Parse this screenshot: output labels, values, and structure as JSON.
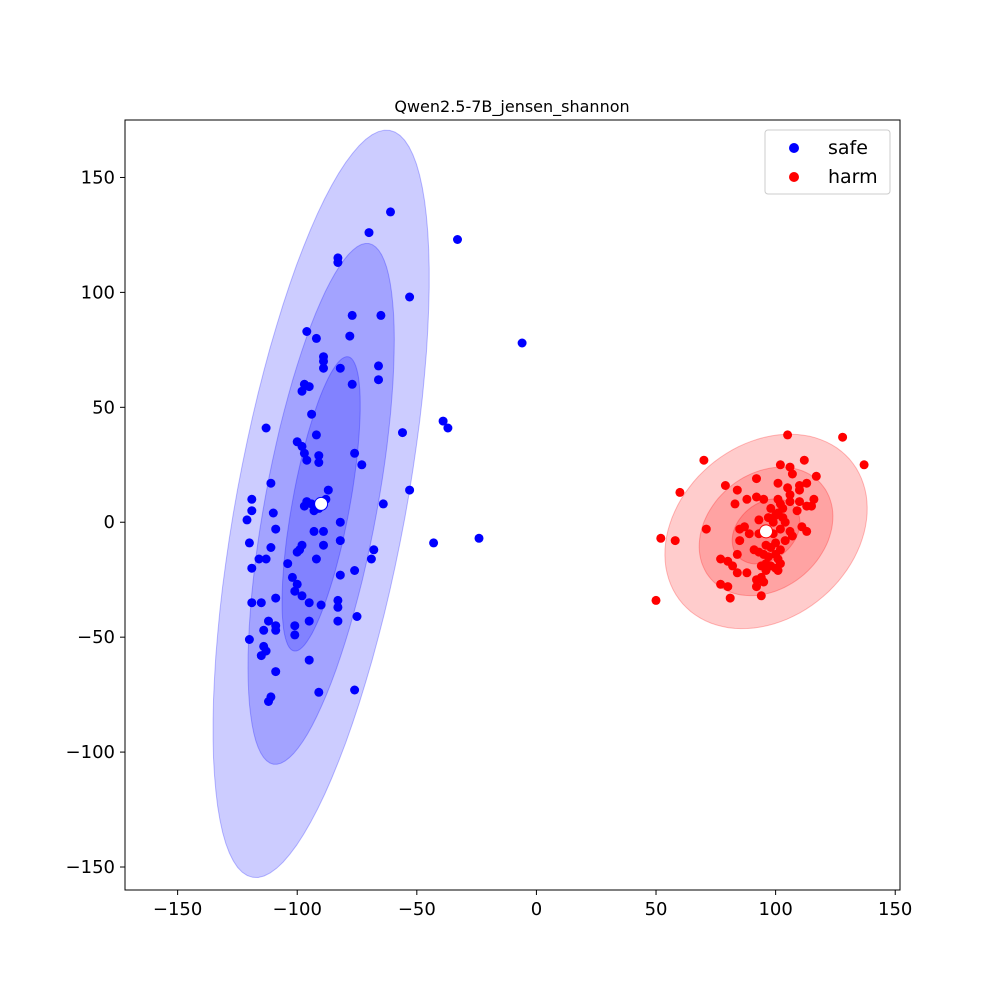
{
  "chart_data": {
    "type": "scatter",
    "title": "Qwen2.5-7B_jensen_shannon",
    "xlabel": "",
    "ylabel": "",
    "xlim": [
      -172,
      152
    ],
    "ylim": [
      -160,
      175
    ],
    "xticks": [
      -150,
      -100,
      -50,
      0,
      50,
      100,
      150
    ],
    "yticks": [
      -150,
      -100,
      -50,
      0,
      50,
      100,
      150
    ],
    "xtick_labels": [
      "−150",
      "−100",
      "−50",
      "0",
      "50",
      "100",
      "150"
    ],
    "ytick_labels": [
      "−150",
      "−100",
      "−50",
      "0",
      "50",
      "100",
      "150"
    ],
    "grid": false,
    "legend_placement": "top-right",
    "series": [
      {
        "name": "safe",
        "color": "#0000ff",
        "mean": [
          -90,
          8
        ],
        "ellipses": [
          {
            "width": 330,
            "height": 71,
            "angle": 80
          },
          {
            "width": 230,
            "height": 47,
            "angle": 80
          },
          {
            "width": 130,
            "height": 24,
            "angle": 80
          }
        ],
        "points": [
          [
            -61,
            135
          ],
          [
            -70,
            126
          ],
          [
            -33,
            123
          ],
          [
            -83,
            115
          ],
          [
            -83,
            113
          ],
          [
            -53,
            98
          ],
          [
            -96,
            83
          ],
          [
            -77,
            90
          ],
          [
            -65,
            90
          ],
          [
            -92,
            80
          ],
          [
            -78,
            81
          ],
          [
            -89,
            72
          ],
          [
            -89,
            70
          ],
          [
            -89,
            67
          ],
          [
            -82,
            67
          ],
          [
            -66,
            68
          ],
          [
            -6,
            78
          ],
          [
            -97,
            60
          ],
          [
            -95,
            59
          ],
          [
            -98,
            57
          ],
          [
            -77,
            60
          ],
          [
            -66,
            62
          ],
          [
            -94,
            47
          ],
          [
            -39,
            44
          ],
          [
            -37,
            41
          ],
          [
            -113,
            41
          ],
          [
            -92,
            38
          ],
          [
            -56,
            39
          ],
          [
            -100,
            35
          ],
          [
            -98,
            33
          ],
          [
            -97,
            30
          ],
          [
            -91,
            29
          ],
          [
            -96,
            27
          ],
          [
            -91,
            26
          ],
          [
            -76,
            30
          ],
          [
            -73,
            25
          ],
          [
            -111,
            17
          ],
          [
            -87,
            14
          ],
          [
            -53,
            14
          ],
          [
            -119,
            10
          ],
          [
            -96,
            9
          ],
          [
            -94,
            8
          ],
          [
            -88,
            10
          ],
          [
            -97,
            7
          ],
          [
            -91,
            8
          ],
          [
            -91,
            6
          ],
          [
            -93,
            5
          ],
          [
            -119,
            5
          ],
          [
            -110,
            4
          ],
          [
            -64,
            8
          ],
          [
            -121,
            1
          ],
          [
            -82,
            0
          ],
          [
            -109,
            -3
          ],
          [
            -93,
            -4
          ],
          [
            -89,
            -4
          ],
          [
            -82,
            -8
          ],
          [
            -120,
            -9
          ],
          [
            -98,
            -10
          ],
          [
            -100,
            -13
          ],
          [
            -89,
            -10
          ],
          [
            -99,
            -12
          ],
          [
            -43,
            -9
          ],
          [
            -24,
            -7
          ],
          [
            -68,
            -12
          ],
          [
            -116,
            -16
          ],
          [
            -113,
            -16
          ],
          [
            -111,
            -11
          ],
          [
            -104,
            -18
          ],
          [
            -92,
            -16
          ],
          [
            -69,
            -16
          ],
          [
            -119,
            -20
          ],
          [
            -76,
            -21
          ],
          [
            -102,
            -24
          ],
          [
            -82,
            -23
          ],
          [
            -100,
            -27
          ],
          [
            -101,
            -30
          ],
          [
            -98,
            -32
          ],
          [
            -109,
            -33
          ],
          [
            -95,
            -35
          ],
          [
            -90,
            -36
          ],
          [
            -119,
            -35
          ],
          [
            -115,
            -35
          ],
          [
            -83,
            -34
          ],
          [
            -83,
            -37
          ],
          [
            -75,
            -41
          ],
          [
            -112,
            -43
          ],
          [
            -95,
            -43
          ],
          [
            -83,
            -43
          ],
          [
            -109,
            -45
          ],
          [
            -114,
            -47
          ],
          [
            -109,
            -47
          ],
          [
            -101,
            -45
          ],
          [
            -120,
            -51
          ],
          [
            -101,
            -49
          ],
          [
            -114,
            -54
          ],
          [
            -113,
            -56
          ],
          [
            -115,
            -58
          ],
          [
            -95,
            -60
          ],
          [
            -109,
            -65
          ],
          [
            -91,
            -74
          ],
          [
            -76,
            -73
          ],
          [
            -111,
            -76
          ],
          [
            -112,
            -78
          ]
        ]
      },
      {
        "name": "harm",
        "color": "#ff0000",
        "mean": [
          96,
          -4
        ],
        "ellipses": [
          {
            "width": 94,
            "height": 74,
            "angle": 45
          },
          {
            "width": 62,
            "height": 49,
            "angle": 45
          },
          {
            "width": 32,
            "height": 24,
            "angle": 45
          }
        ],
        "points": [
          [
            105,
            38
          ],
          [
            128,
            37
          ],
          [
            137,
            25
          ],
          [
            70,
            27
          ],
          [
            112,
            27
          ],
          [
            102,
            25
          ],
          [
            106,
            24
          ],
          [
            107,
            21
          ],
          [
            117,
            20
          ],
          [
            92,
            19
          ],
          [
            101,
            17
          ],
          [
            110,
            16
          ],
          [
            79,
            16
          ],
          [
            113,
            17
          ],
          [
            60,
            13
          ],
          [
            84,
            14
          ],
          [
            105,
            15
          ],
          [
            110,
            14
          ],
          [
            106,
            12
          ],
          [
            92,
            11
          ],
          [
            95,
            10
          ],
          [
            101,
            10
          ],
          [
            116,
            10
          ],
          [
            88,
            10
          ],
          [
            106,
            9
          ],
          [
            102,
            8
          ],
          [
            110,
            9
          ],
          [
            83,
            8
          ],
          [
            113,
            7
          ],
          [
            115,
            7
          ],
          [
            98,
            6
          ],
          [
            103,
            6
          ],
          [
            101,
            4
          ],
          [
            109,
            5
          ],
          [
            100,
            3
          ],
          [
            97,
            2
          ],
          [
            103,
            2
          ],
          [
            93,
            1
          ],
          [
            99,
            0
          ],
          [
            104,
            0
          ],
          [
            87,
            -2
          ],
          [
            85,
            -3
          ],
          [
            71,
            -3
          ],
          [
            111,
            -2
          ],
          [
            113,
            -4
          ],
          [
            102,
            -3
          ],
          [
            106,
            -4
          ],
          [
            97,
            -4
          ],
          [
            93,
            -5
          ],
          [
            99,
            -5
          ],
          [
            89,
            -5
          ],
          [
            52,
            -7
          ],
          [
            58,
            -8
          ],
          [
            85,
            -8
          ],
          [
            107,
            -6
          ],
          [
            104,
            -8
          ],
          [
            96,
            -10
          ],
          [
            100,
            -9
          ],
          [
            98,
            -11
          ],
          [
            91,
            -12
          ],
          [
            93,
            -13
          ],
          [
            102,
            -12
          ],
          [
            95,
            -14
          ],
          [
            100,
            -14
          ],
          [
            84,
            -14
          ],
          [
            97,
            -15
          ],
          [
            101,
            -16
          ],
          [
            77,
            -16
          ],
          [
            80,
            -17
          ],
          [
            96,
            -18
          ],
          [
            102,
            -18
          ],
          [
            98,
            -19
          ],
          [
            82,
            -19
          ],
          [
            94,
            -19
          ],
          [
            100,
            -20
          ],
          [
            96,
            -21
          ],
          [
            101,
            -21
          ],
          [
            88,
            -22
          ],
          [
            84,
            -22
          ],
          [
            94,
            -24
          ],
          [
            92,
            -25
          ],
          [
            95,
            -26
          ],
          [
            77,
            -27
          ],
          [
            80,
            -28
          ],
          [
            92,
            -28
          ],
          [
            50,
            -34
          ],
          [
            94,
            -32
          ],
          [
            81,
            -33
          ]
        ]
      }
    ]
  }
}
